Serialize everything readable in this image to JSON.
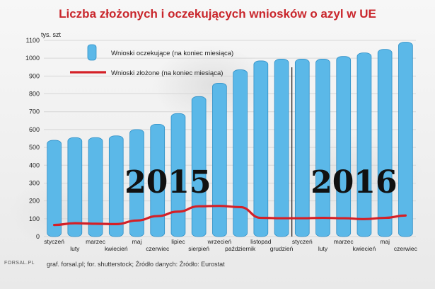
{
  "title": "Liczba złożonych i oczekujących wniosków o azyl w UE",
  "footer": "graf. forsal.pl; for. shutterstock; Źródło danych:  Źródło: Eurostat",
  "logo": "FORSAL.PL",
  "chart_data": {
    "type": "bar",
    "title": "Liczba złożonych i oczekujących wniosków o azyl w UE",
    "ylabel": "tys. szt",
    "ylim": [
      0,
      1100
    ],
    "yticks": [
      0,
      100,
      200,
      300,
      400,
      500,
      600,
      700,
      800,
      900,
      1000,
      1100
    ],
    "grid": true,
    "legend_placement": "top-left",
    "categories": [
      "styczeń",
      "luty",
      "marzec",
      "kwiecień",
      "maj",
      "czerwiec",
      "lipiec",
      "sierpień",
      "wrzecień",
      "październik",
      "listopad",
      "grudzień",
      "styczeń",
      "luty",
      "marzec",
      "kwiecień",
      "maj",
      "czerwiec"
    ],
    "year_labels": [
      {
        "label": "2015",
        "start": 0,
        "end": 11
      },
      {
        "label": "2016",
        "start": 12,
        "end": 17
      }
    ],
    "series": [
      {
        "name": "Wnioski oczekujące (na koniec miesiąca)",
        "kind": "bar",
        "color": "#5bb8e8",
        "values": [
          540,
          555,
          555,
          565,
          600,
          630,
          690,
          785,
          860,
          935,
          985,
          995,
          995,
          995,
          1010,
          1030,
          1050,
          1090
        ]
      },
      {
        "name": "Wnioski złożone (na koniec miesiąca)",
        "kind": "line",
        "color": "#d42027",
        "values": [
          65,
          75,
          72,
          70,
          90,
          115,
          140,
          170,
          172,
          165,
          105,
          103,
          103,
          105,
          103,
          98,
          105,
          118
        ]
      }
    ]
  }
}
